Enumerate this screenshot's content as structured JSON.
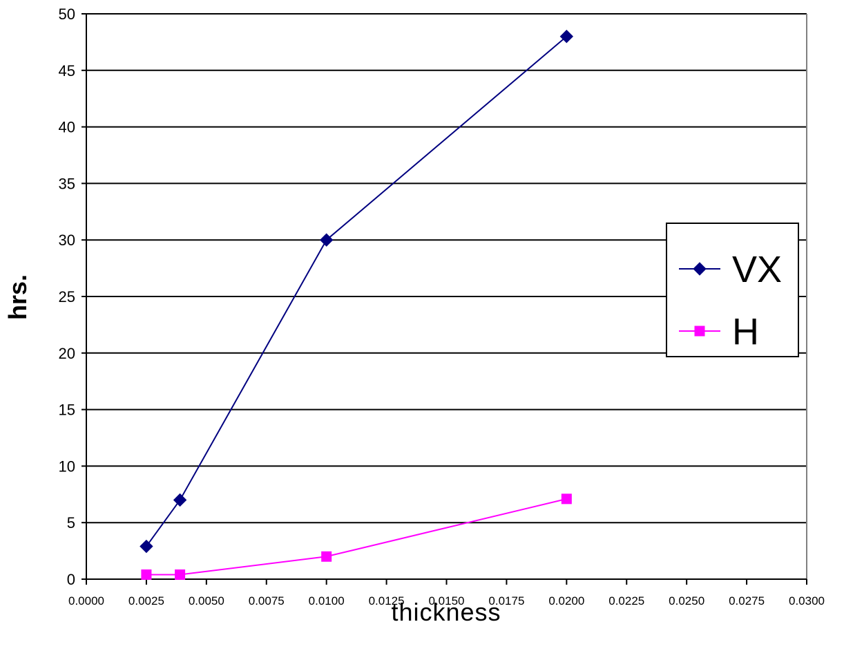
{
  "chart_data": {
    "type": "line",
    "title": "",
    "xlabel": "thickness",
    "ylabel": "hrs.",
    "xlim": [
      0.0,
      0.03
    ],
    "ylim": [
      0,
      50
    ],
    "x_ticks": [
      "0.0000",
      "0.0025",
      "0.0050",
      "0.0075",
      "0.0100",
      "0.0125",
      "0.0150",
      "0.0175",
      "0.0200",
      "0.0225",
      "0.0250",
      "0.0275",
      "0.0300"
    ],
    "y_ticks": [
      "0",
      "5",
      "10",
      "15",
      "20",
      "25",
      "30",
      "35",
      "40",
      "45",
      "50"
    ],
    "grid": "horizontal",
    "legend_position": "right",
    "series": [
      {
        "name": "VX",
        "color": "#000080",
        "marker": "diamond",
        "x": [
          0.0025,
          0.0039,
          0.01,
          0.02
        ],
        "y": [
          2.9,
          7.0,
          30.0,
          48.0
        ]
      },
      {
        "name": "H",
        "color": "#FF00FF",
        "marker": "square",
        "x": [
          0.0025,
          0.0039,
          0.01,
          0.02
        ],
        "y": [
          0.4,
          0.4,
          2.0,
          7.1
        ]
      }
    ]
  }
}
